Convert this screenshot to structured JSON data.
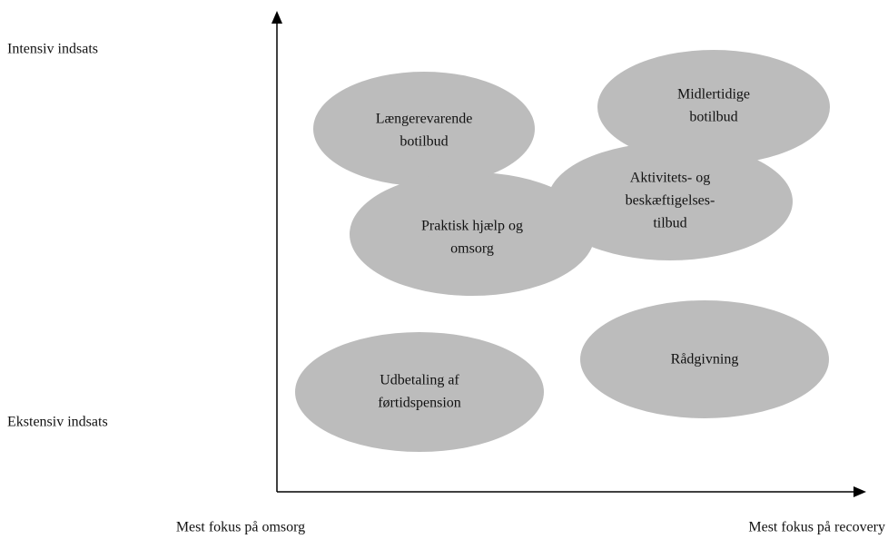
{
  "axes": {
    "y_top": "Intensiv indsats",
    "y_bottom": "Ekstensiv indsats",
    "x_left": "Mest fokus på omsorg",
    "x_right": "Mest fokus på recovery"
  },
  "nodes": [
    {
      "lines": [
        "Længerevarende",
        "botilbud"
      ]
    },
    {
      "lines": [
        "Midlertidige",
        "botilbud"
      ]
    },
    {
      "lines": [
        "Aktivitets- og",
        "beskæftigelses-",
        "tilbud"
      ]
    },
    {
      "lines": [
        "Praktisk hjælp og",
        "omsorg"
      ]
    },
    {
      "lines": [
        "Rådgivning"
      ]
    },
    {
      "lines": [
        "Udbetaling af",
        "førtidspension"
      ]
    }
  ]
}
